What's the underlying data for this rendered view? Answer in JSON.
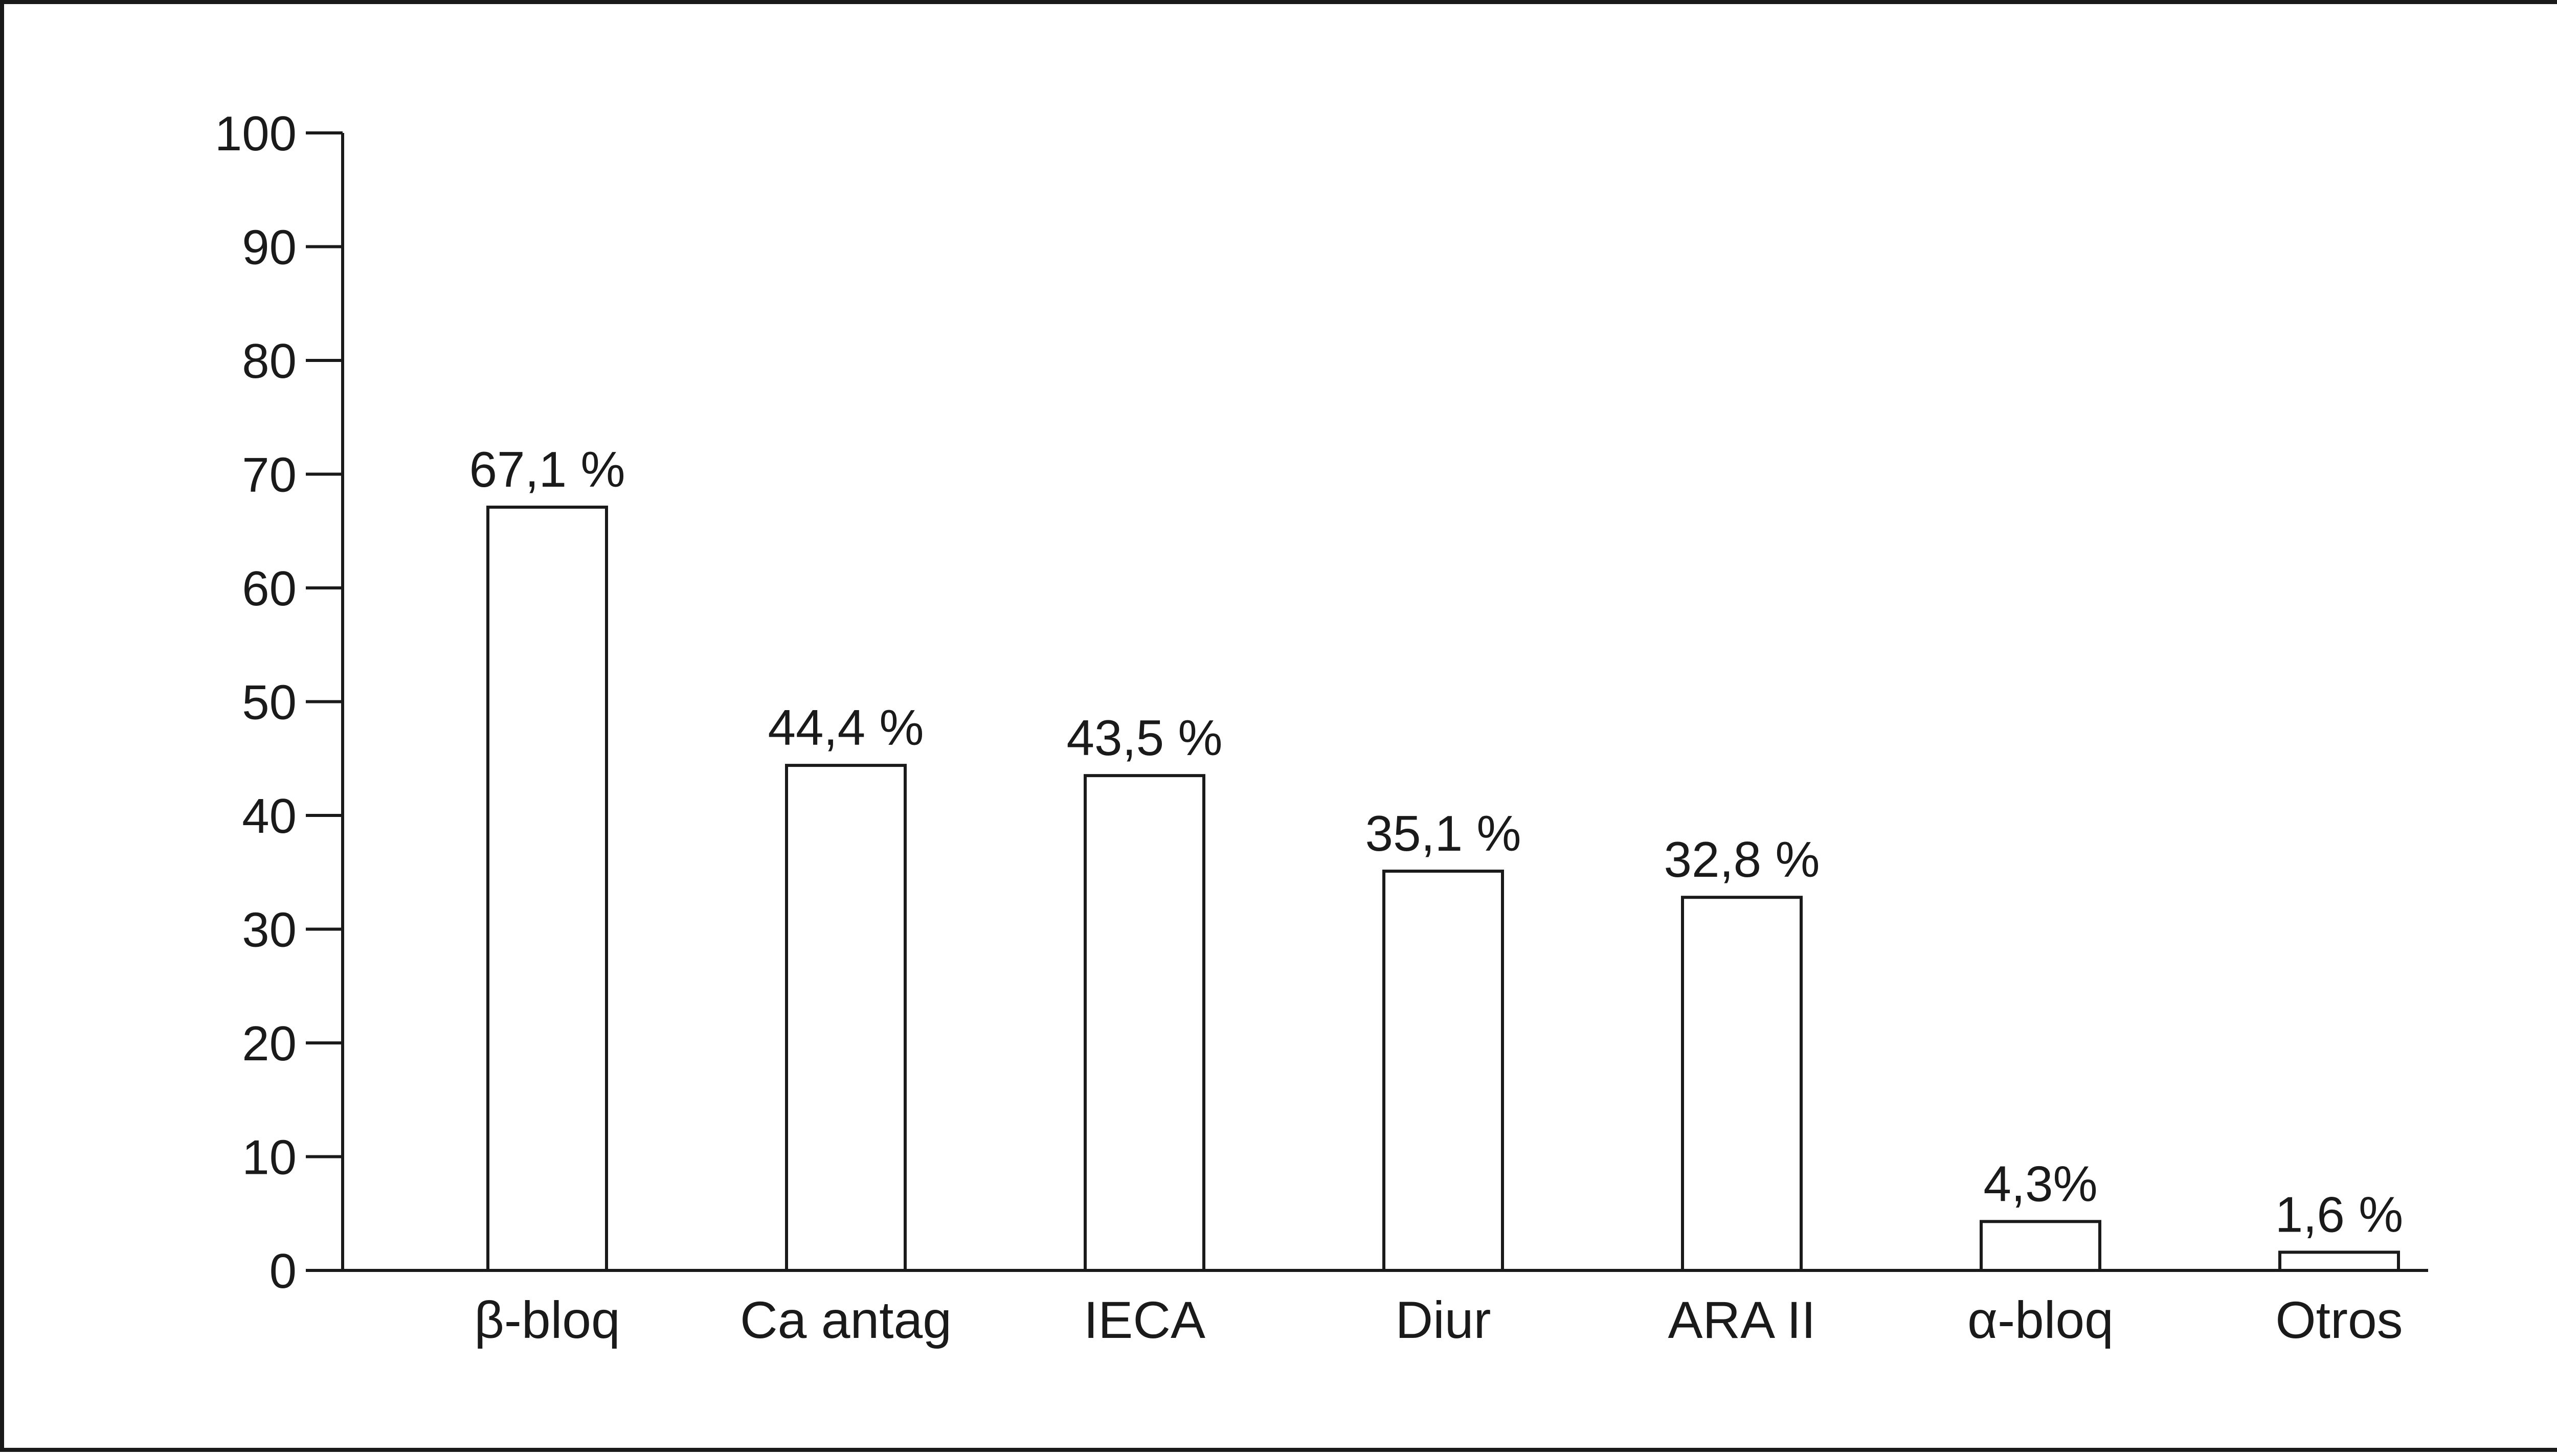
{
  "chart_data": {
    "type": "bar",
    "title": "",
    "xlabel": "",
    "ylabel": "",
    "ylim": [
      0,
      100
    ],
    "yticks": [
      0,
      10,
      20,
      30,
      40,
      50,
      60,
      70,
      80,
      90,
      100
    ],
    "grid": false,
    "legend": "none",
    "categories": [
      "β-bloq",
      "Ca antag",
      "IECA",
      "Diur",
      "ARA II",
      "α-bloq",
      "Otros"
    ],
    "values": [
      67.1,
      44.4,
      43.5,
      35.1,
      32.8,
      4.3,
      1.6
    ],
    "data_labels": [
      "67,1 %",
      "44,4 %",
      "43,5 %",
      "35,1 %",
      "32,8 %",
      "4,3%",
      "1,6 %"
    ],
    "colors": {
      "bar_fill": "#ffffff",
      "bar_stroke": "#1a1a1a",
      "axis": "#1a1a1a"
    }
  }
}
